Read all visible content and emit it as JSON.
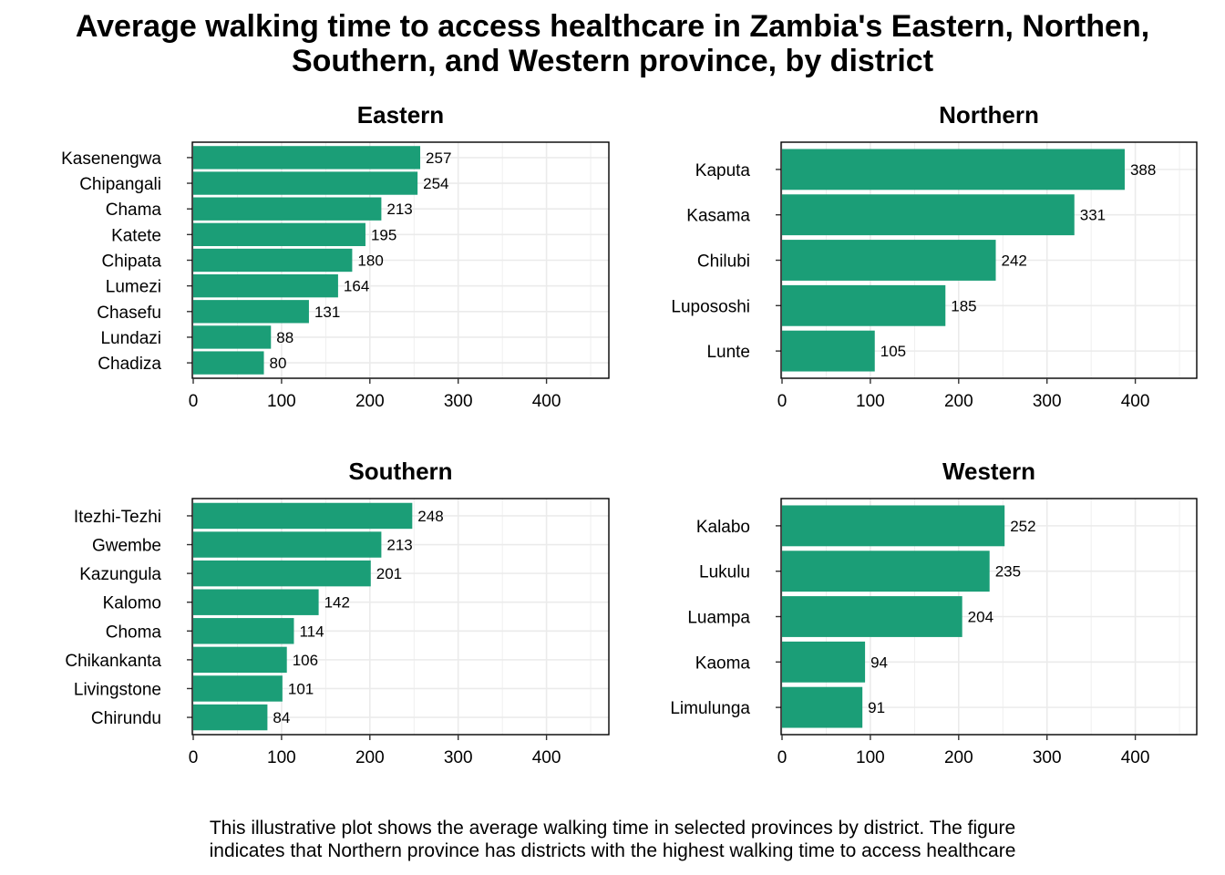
{
  "title_lines": [
    "Average walking time to access healthcare in Zambia's Eastern, Northen,",
    "Southern, and Western province, by district"
  ],
  "caption_lines": [
    "This illustrative plot shows the average walking time in selected provinces by district. The figure",
    "indicates that Northern province has districts with the highest walking time to access healthcare"
  ],
  "colors": {
    "bar": "#1B9E77",
    "grid": "#EBEBEB",
    "border": "#000000"
  },
  "chart_data": [
    {
      "type": "bar",
      "orientation": "horizontal",
      "title": "Eastern",
      "categories": [
        "Kasenengwa",
        "Chipangali",
        "Chama",
        "Katete",
        "Chipata",
        "Lumezi",
        "Chasefu",
        "Lundazi",
        "Chadiza"
      ],
      "values": [
        257,
        254,
        213,
        195,
        180,
        164,
        131,
        88,
        80
      ],
      "xticks": [
        0,
        100,
        200,
        300,
        400
      ],
      "xlim": [
        0,
        470
      ],
      "grid": true
    },
    {
      "type": "bar",
      "orientation": "horizontal",
      "title": "Northern",
      "categories": [
        "Kaputa",
        "Kasama",
        "Chilubi",
        "Lupososhi",
        "Lunte"
      ],
      "values": [
        388,
        331,
        242,
        185,
        105
      ],
      "xticks": [
        0,
        100,
        200,
        300,
        400
      ],
      "xlim": [
        0,
        470
      ],
      "grid": true
    },
    {
      "type": "bar",
      "orientation": "horizontal",
      "title": "Southern",
      "categories": [
        "Itezhi-Tezhi",
        "Gwembe",
        "Kazungula",
        "Kalomo",
        "Choma",
        "Chikankanta",
        "Livingstone",
        "Chirundu"
      ],
      "values": [
        248,
        213,
        201,
        142,
        114,
        106,
        101,
        84
      ],
      "xticks": [
        0,
        100,
        200,
        300,
        400
      ],
      "xlim": [
        0,
        470
      ],
      "grid": true
    },
    {
      "type": "bar",
      "orientation": "horizontal",
      "title": "Western",
      "categories": [
        "Kalabo",
        "Lukulu",
        "Luampa",
        "Kaoma",
        "Limulunga"
      ],
      "values": [
        252,
        235,
        204,
        94,
        91
      ],
      "xticks": [
        0,
        100,
        200,
        300,
        400
      ],
      "xlim": [
        0,
        470
      ],
      "grid": true
    }
  ]
}
